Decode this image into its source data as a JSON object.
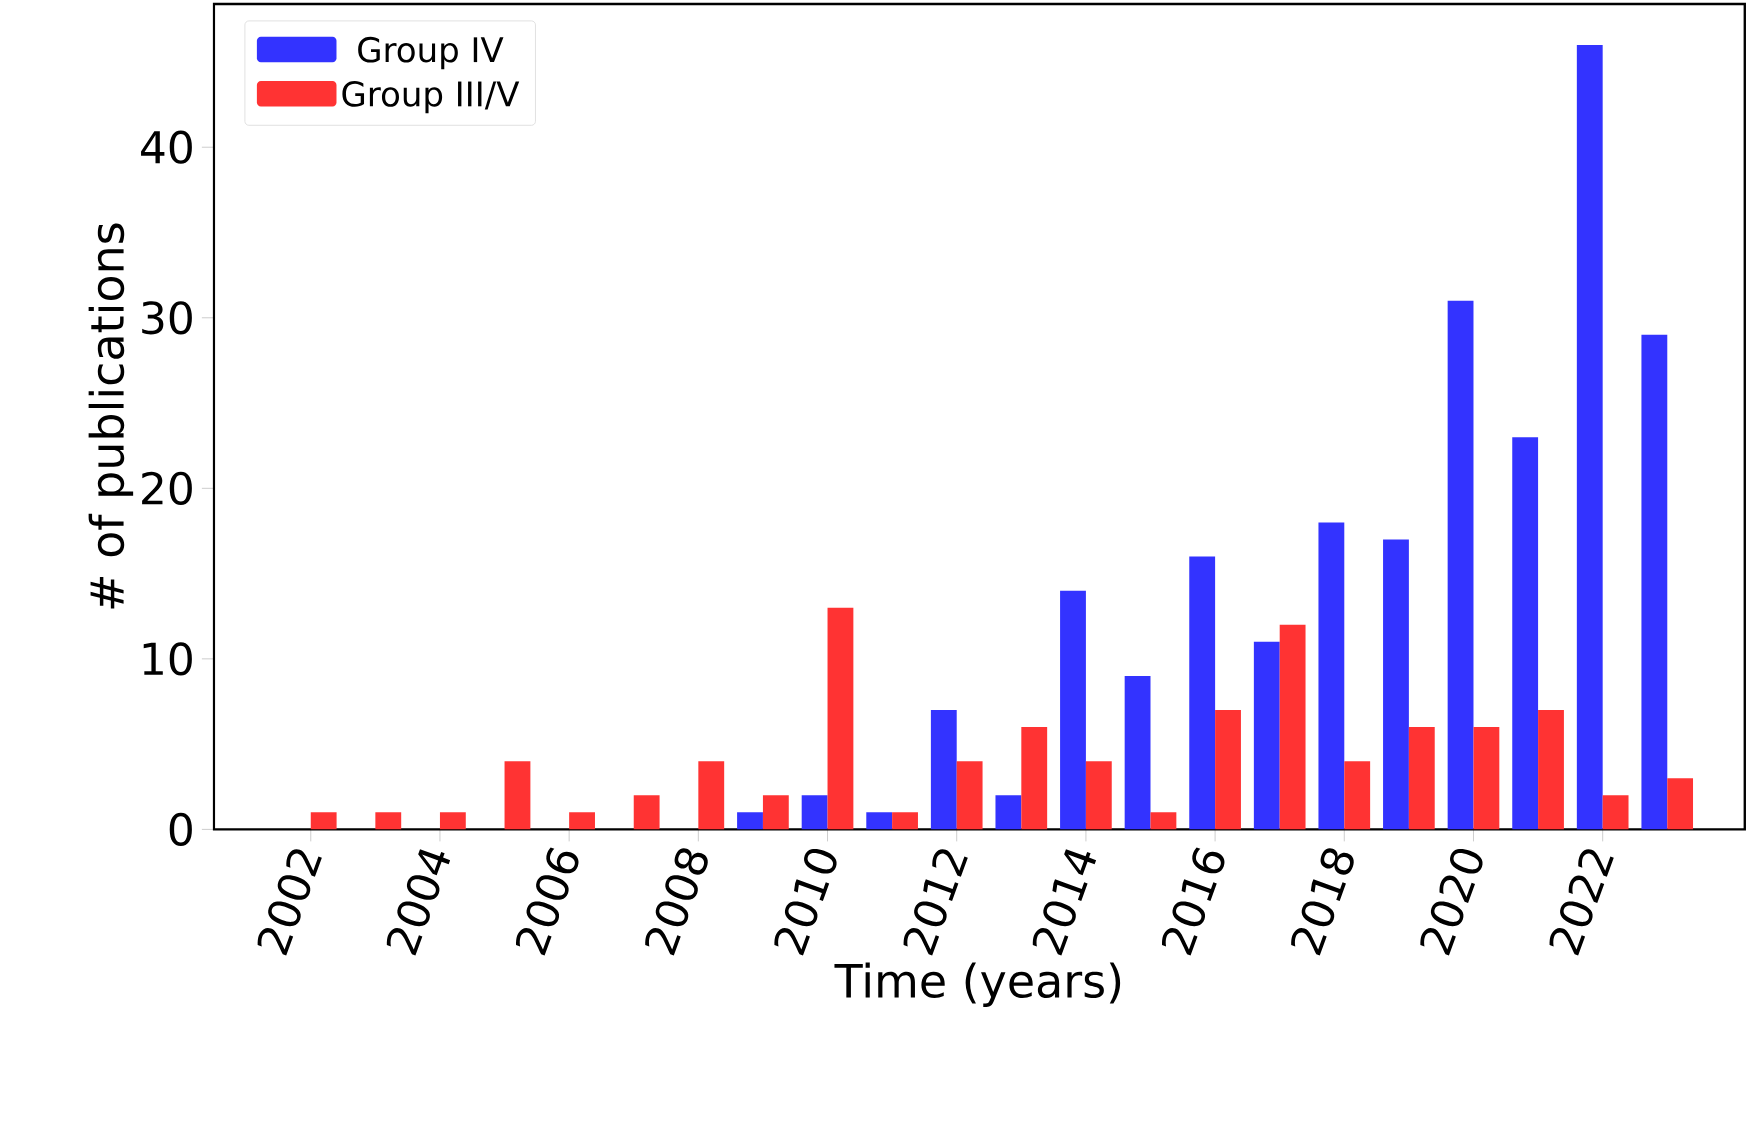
{
  "chart_data": {
    "type": "bar",
    "xlabel": "Time (years)",
    "ylabel": "# of publications",
    "x": [
      2002,
      2003,
      2004,
      2005,
      2006,
      2007,
      2008,
      2009,
      2010,
      2011,
      2012,
      2013,
      2014,
      2015,
      2016,
      2017,
      2018,
      2019,
      2020,
      2021,
      2022,
      2023
    ],
    "series": [
      {
        "name": "Group IV",
        "color": "#3333ff",
        "values": [
          0,
          0,
          0,
          0,
          0,
          0,
          0,
          1,
          2,
          1,
          7,
          2,
          14,
          9,
          16,
          11,
          18,
          17,
          31,
          23,
          46,
          29
        ]
      },
      {
        "name": "Group III/V",
        "color": "#ff3333",
        "values": [
          1,
          1,
          1,
          4,
          1,
          2,
          4,
          2,
          13,
          1,
          4,
          6,
          4,
          1,
          7,
          12,
          4,
          6,
          6,
          7,
          2,
          3
        ]
      }
    ],
    "xlim": [
      2000.5,
      2024.2
    ],
    "ylim": [
      0,
      48.4
    ],
    "xticks": [
      2002,
      2004,
      2006,
      2008,
      2010,
      2012,
      2014,
      2016,
      2018,
      2020,
      2022
    ],
    "yticks": [
      0,
      10,
      20,
      30,
      40
    ],
    "legend": "top left",
    "grid": false
  }
}
